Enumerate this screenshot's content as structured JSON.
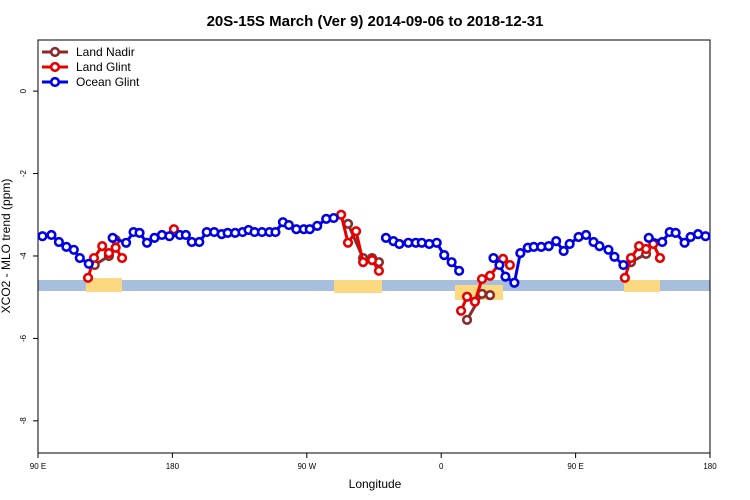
{
  "chart_data": {
    "type": "line",
    "title": "20S-15S March (Ver 9)   2014-09-06 to 2018-12-31",
    "xlabel": "Longitude",
    "ylabel": "XCO2 - MLO trend (ppm)",
    "xlim": [
      90,
      540
    ],
    "ylim": [
      -8.78,
      1.24
    ],
    "xticks": [
      {
        "value": 90,
        "label": "90 E"
      },
      180,
      {
        "value": 270,
        "label": "90 W"
      },
      {
        "value": 360,
        "label": "0"
      },
      {
        "value": 450,
        "label": "90 E"
      },
      {
        "value": 540,
        "label": "180"
      }
    ],
    "yticks": [
      0,
      -2,
      -4,
      -6,
      -8
    ],
    "legend": "top-left",
    "series": [
      {
        "name": "Land Nadir",
        "color": "#8b2a2a",
        "x": [
          128,
          137.5,
          142,
          null,
          297.6,
          307.7,
          313.7,
          318.3,
          null,
          377.3,
          387.3,
          392.7,
          null,
          487.1,
          497.2
        ],
        "values": [
          -4.22,
          -4.0,
          -3.61,
          null,
          -3.22,
          -4.05,
          -4.05,
          -4.15,
          null,
          -5.55,
          -4.92,
          -4.95,
          null,
          -4.15,
          -3.95
        ]
      },
      {
        "name": "Land Glint",
        "color": "#e60000",
        "x": [
          123.5,
          127.5,
          133,
          137.5,
          142,
          146.3,
          null,
          181,
          null,
          293,
          297.6,
          303,
          307.7,
          313.7,
          318.3,
          null,
          373.3,
          377.3,
          382.6,
          387.3,
          392.7,
          401.4,
          406,
          null,
          483,
          487.1,
          492.5,
          497.2,
          502,
          506.5
        ],
        "values": [
          -4.53,
          -4.05,
          -3.76,
          -3.93,
          -3.8,
          -4.05,
          null,
          -3.35,
          null,
          -3.0,
          -3.68,
          -3.4,
          -4.15,
          -4.1,
          -4.36,
          null,
          -5.33,
          -4.99,
          -5.11,
          -4.56,
          -4.48,
          -4.07,
          -4.22,
          null,
          -4.53,
          -4.05,
          -3.76,
          -3.83,
          -3.71,
          -4.05
        ]
      },
      {
        "name": "Ocean Glint",
        "color": "#0000e6",
        "x": [
          93,
          99,
          104,
          109,
          114,
          118,
          124,
          null,
          140,
          149,
          154,
          158,
          163,
          168,
          173,
          178,
          185,
          189,
          193,
          198,
          203,
          208,
          213,
          217,
          222,
          227,
          231,
          235,
          240,
          245,
          249,
          254,
          258,
          263,
          268,
          272,
          277,
          283,
          288,
          null,
          323,
          328,
          332,
          338,
          343,
          347,
          352,
          357,
          362,
          367,
          372,
          null,
          395,
          399,
          403,
          409,
          413,
          418,
          422,
          427,
          432,
          437,
          442,
          446,
          452,
          457,
          462,
          466,
          472,
          476,
          482,
          null,
          499,
          508,
          513,
          517,
          523,
          527,
          532,
          537
        ],
        "values": [
          -3.52,
          -3.49,
          -3.66,
          -3.78,
          -3.85,
          -4.05,
          -4.19,
          null,
          -3.56,
          -3.68,
          -3.42,
          -3.44,
          -3.68,
          -3.56,
          -3.49,
          -3.52,
          -3.49,
          -3.49,
          -3.66,
          -3.66,
          -3.42,
          -3.42,
          -3.47,
          -3.44,
          -3.44,
          -3.42,
          -3.37,
          -3.42,
          -3.42,
          -3.42,
          -3.42,
          -3.18,
          -3.25,
          -3.35,
          -3.35,
          -3.35,
          -3.27,
          -3.1,
          -3.08,
          null,
          -3.56,
          -3.64,
          -3.71,
          -3.68,
          -3.68,
          -3.68,
          -3.71,
          -3.68,
          -3.98,
          -4.15,
          -4.36,
          null,
          -4.05,
          -4.22,
          -4.5,
          -4.65,
          -3.93,
          -3.8,
          -3.78,
          -3.78,
          -3.76,
          -3.64,
          -3.88,
          -3.71,
          -3.54,
          -3.49,
          -3.66,
          -3.76,
          -3.85,
          -4.02,
          -4.22,
          null,
          -3.56,
          -3.66,
          -3.42,
          -3.44,
          -3.68,
          -3.54,
          -3.47,
          -3.52
        ]
      }
    ]
  }
}
